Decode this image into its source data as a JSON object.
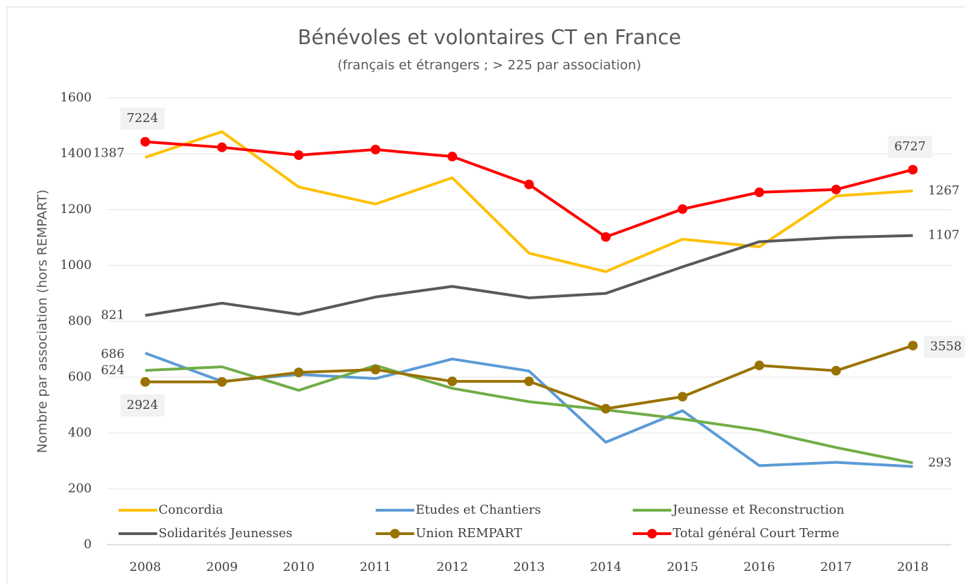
{
  "chart_data": {
    "type": "line",
    "title": "Bénévoles et volontaires CT en France",
    "subtitle": "(français et étrangers ; > 225 par association)",
    "y_label": "Nombre par association (hors REMPART)",
    "categories": [
      "2008",
      "2009",
      "2010",
      "2011",
      "2012",
      "2013",
      "2014",
      "2015",
      "2016",
      "2017",
      "2018"
    ],
    "ylim": [
      0,
      1600
    ],
    "yticks": [
      0,
      200,
      400,
      600,
      800,
      1000,
      1200,
      1400,
      1600
    ],
    "grid": true,
    "legend": "bottom",
    "series": [
      {
        "name": "Concordia",
        "color": "#ffc000",
        "values": [
          1387,
          1479,
          1281,
          1220,
          1314,
          1044,
          978,
          1094,
          1067,
          1249,
          1267
        ]
      },
      {
        "name": "Etudes et Chantiers",
        "color": "#5b9bd5",
        "values": [
          686,
          585,
          610,
          595,
          665,
          622,
          367,
          480,
          283,
          295,
          280
        ]
      },
      {
        "name": "Jeunesse et Reconstruction",
        "color": "#70ad47",
        "values": [
          624,
          637,
          553,
          642,
          560,
          512,
          483,
          450,
          410,
          348,
          293
        ]
      },
      {
        "name": "Solidarités Jeunesses",
        "color": "#595959",
        "values": [
          821,
          865,
          825,
          887,
          925,
          884,
          900,
          995,
          1085,
          1100,
          1107
        ]
      },
      {
        "name": "Union REMPART",
        "color": "#997300",
        "markers": true,
        "values": [
          583,
          583,
          617,
          627,
          585,
          585,
          487,
          530,
          642,
          623,
          713
        ]
      },
      {
        "name": "Total général Court Terme",
        "color": "#ff0000",
        "markers": true,
        "values": [
          1443,
          1423,
          1395,
          1415,
          1390,
          1290,
          1102,
          1202,
          1262,
          1272,
          1343
        ]
      }
    ],
    "annotations": [
      "7224",
      "6727",
      "2924",
      "3558"
    ]
  }
}
